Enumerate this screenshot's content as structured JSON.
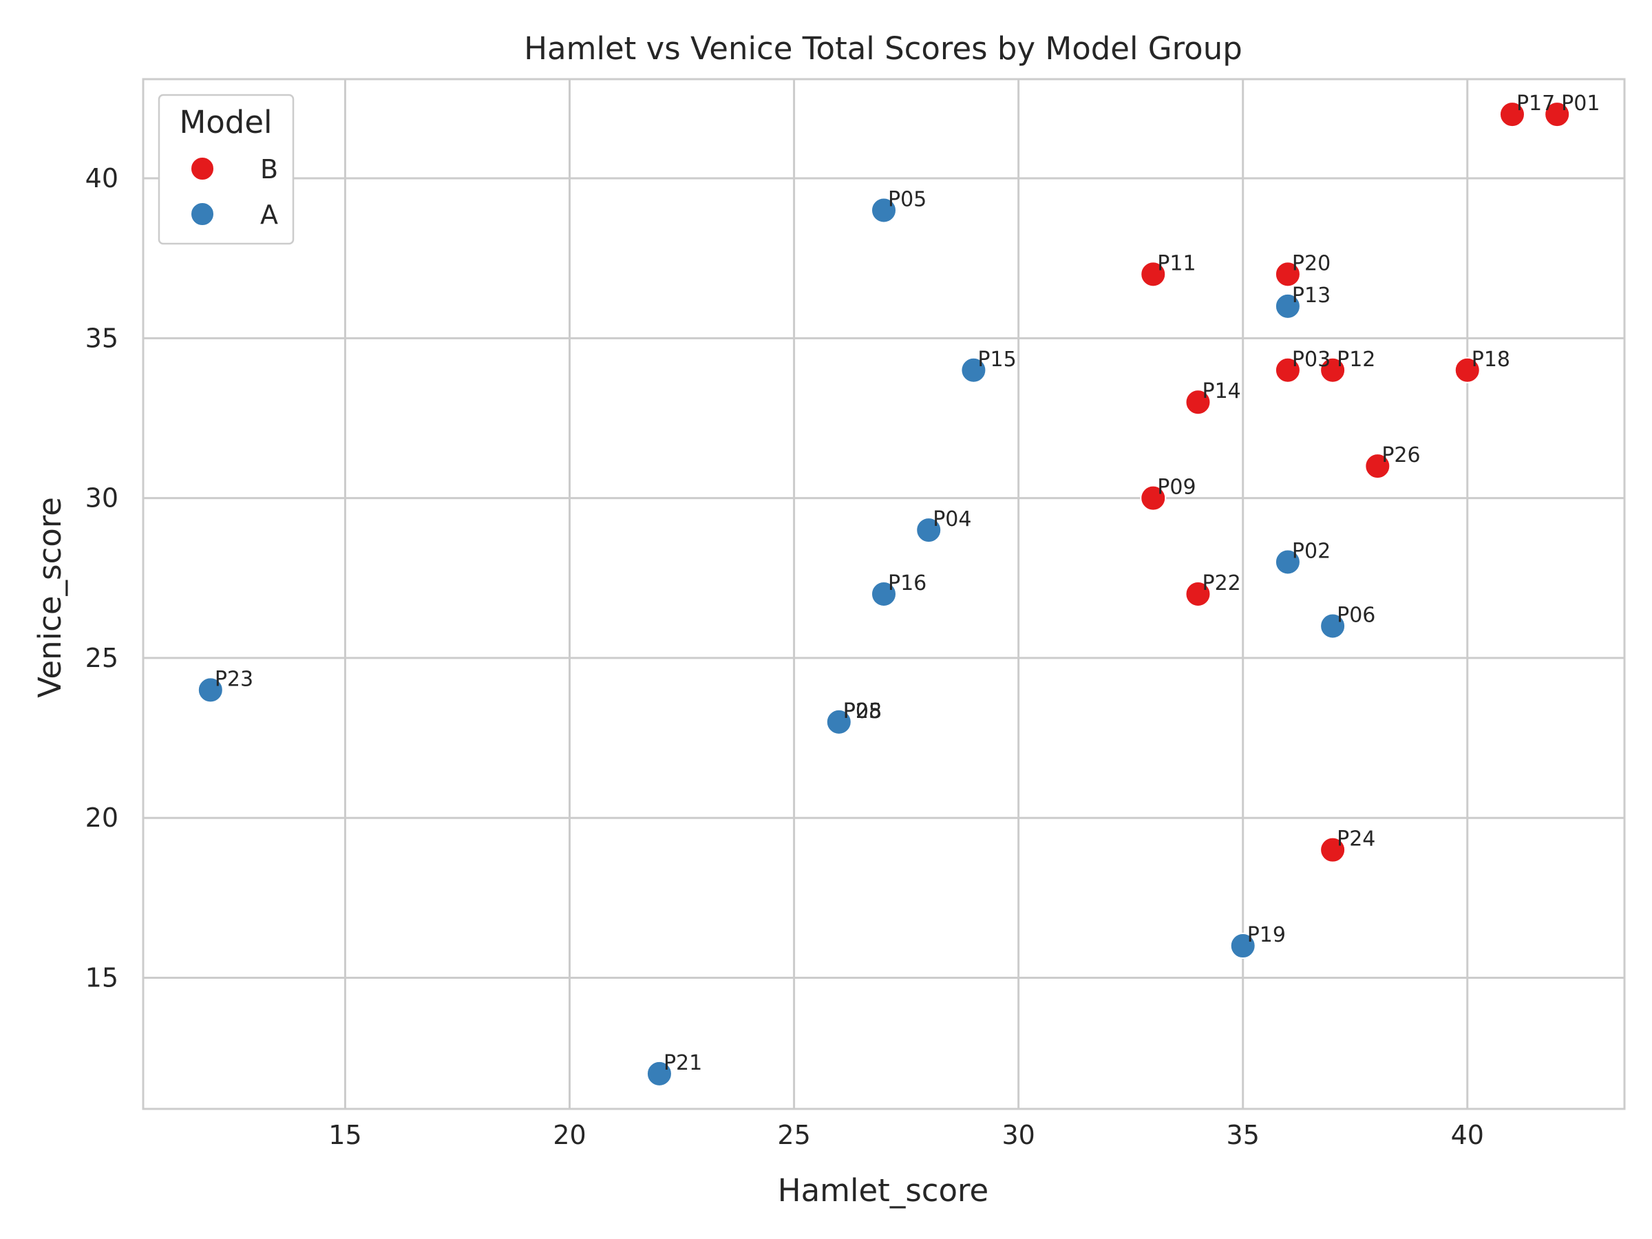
{
  "chart_data": {
    "type": "scatter",
    "title": "Hamlet vs Venice Total Scores by Model Group",
    "xlabel": "Hamlet_score",
    "ylabel": "Venice_score",
    "xlim": [
      10.5,
      43.5
    ],
    "ylim": [
      10.9,
      43.1
    ],
    "xticks": [
      "15",
      "20",
      "25",
      "30",
      "35",
      "40"
    ],
    "yticks": [
      "15",
      "20",
      "25",
      "30",
      "35",
      "40"
    ],
    "grid": true,
    "legend": {
      "title": "Model",
      "placement": "top-left",
      "entries": [
        "B",
        "A"
      ]
    },
    "colors": {
      "B": "#e41a1c",
      "A": "#377eb8"
    },
    "points": [
      {
        "id": "P01",
        "x": 42,
        "y": 42,
        "group": "B"
      },
      {
        "id": "P02",
        "x": 36,
        "y": 28,
        "group": "A"
      },
      {
        "id": "P03",
        "x": 36,
        "y": 34,
        "group": "B"
      },
      {
        "id": "P04",
        "x": 28,
        "y": 29,
        "group": "A"
      },
      {
        "id": "P05",
        "x": 27,
        "y": 39,
        "group": "A"
      },
      {
        "id": "P06",
        "x": 37,
        "y": 26,
        "group": "A"
      },
      {
        "id": "P08",
        "x": 26,
        "y": 23,
        "group": "A"
      },
      {
        "id": "P09",
        "x": 33,
        "y": 30,
        "group": "B"
      },
      {
        "id": "P11",
        "x": 33,
        "y": 37,
        "group": "B"
      },
      {
        "id": "P12",
        "x": 37,
        "y": 34,
        "group": "B"
      },
      {
        "id": "P13",
        "x": 36,
        "y": 36,
        "group": "A"
      },
      {
        "id": "P14",
        "x": 34,
        "y": 33,
        "group": "B"
      },
      {
        "id": "P15",
        "x": 29,
        "y": 34,
        "group": "A"
      },
      {
        "id": "P16",
        "x": 27,
        "y": 27,
        "group": "A"
      },
      {
        "id": "P17",
        "x": 41,
        "y": 42,
        "group": "B"
      },
      {
        "id": "P18",
        "x": 40,
        "y": 34,
        "group": "B"
      },
      {
        "id": "P19",
        "x": 35,
        "y": 16,
        "group": "A"
      },
      {
        "id": "P20",
        "x": 36,
        "y": 37,
        "group": "B"
      },
      {
        "id": "P21",
        "x": 22,
        "y": 12,
        "group": "A"
      },
      {
        "id": "P22",
        "x": 34,
        "y": 27,
        "group": "B"
      },
      {
        "id": "P23",
        "x": 12,
        "y": 24,
        "group": "A"
      },
      {
        "id": "P24",
        "x": 37,
        "y": 19,
        "group": "B"
      },
      {
        "id": "P25",
        "x": 26,
        "y": 23,
        "group": "A"
      },
      {
        "id": "P26",
        "x": 38,
        "y": 31,
        "group": "B"
      }
    ]
  }
}
